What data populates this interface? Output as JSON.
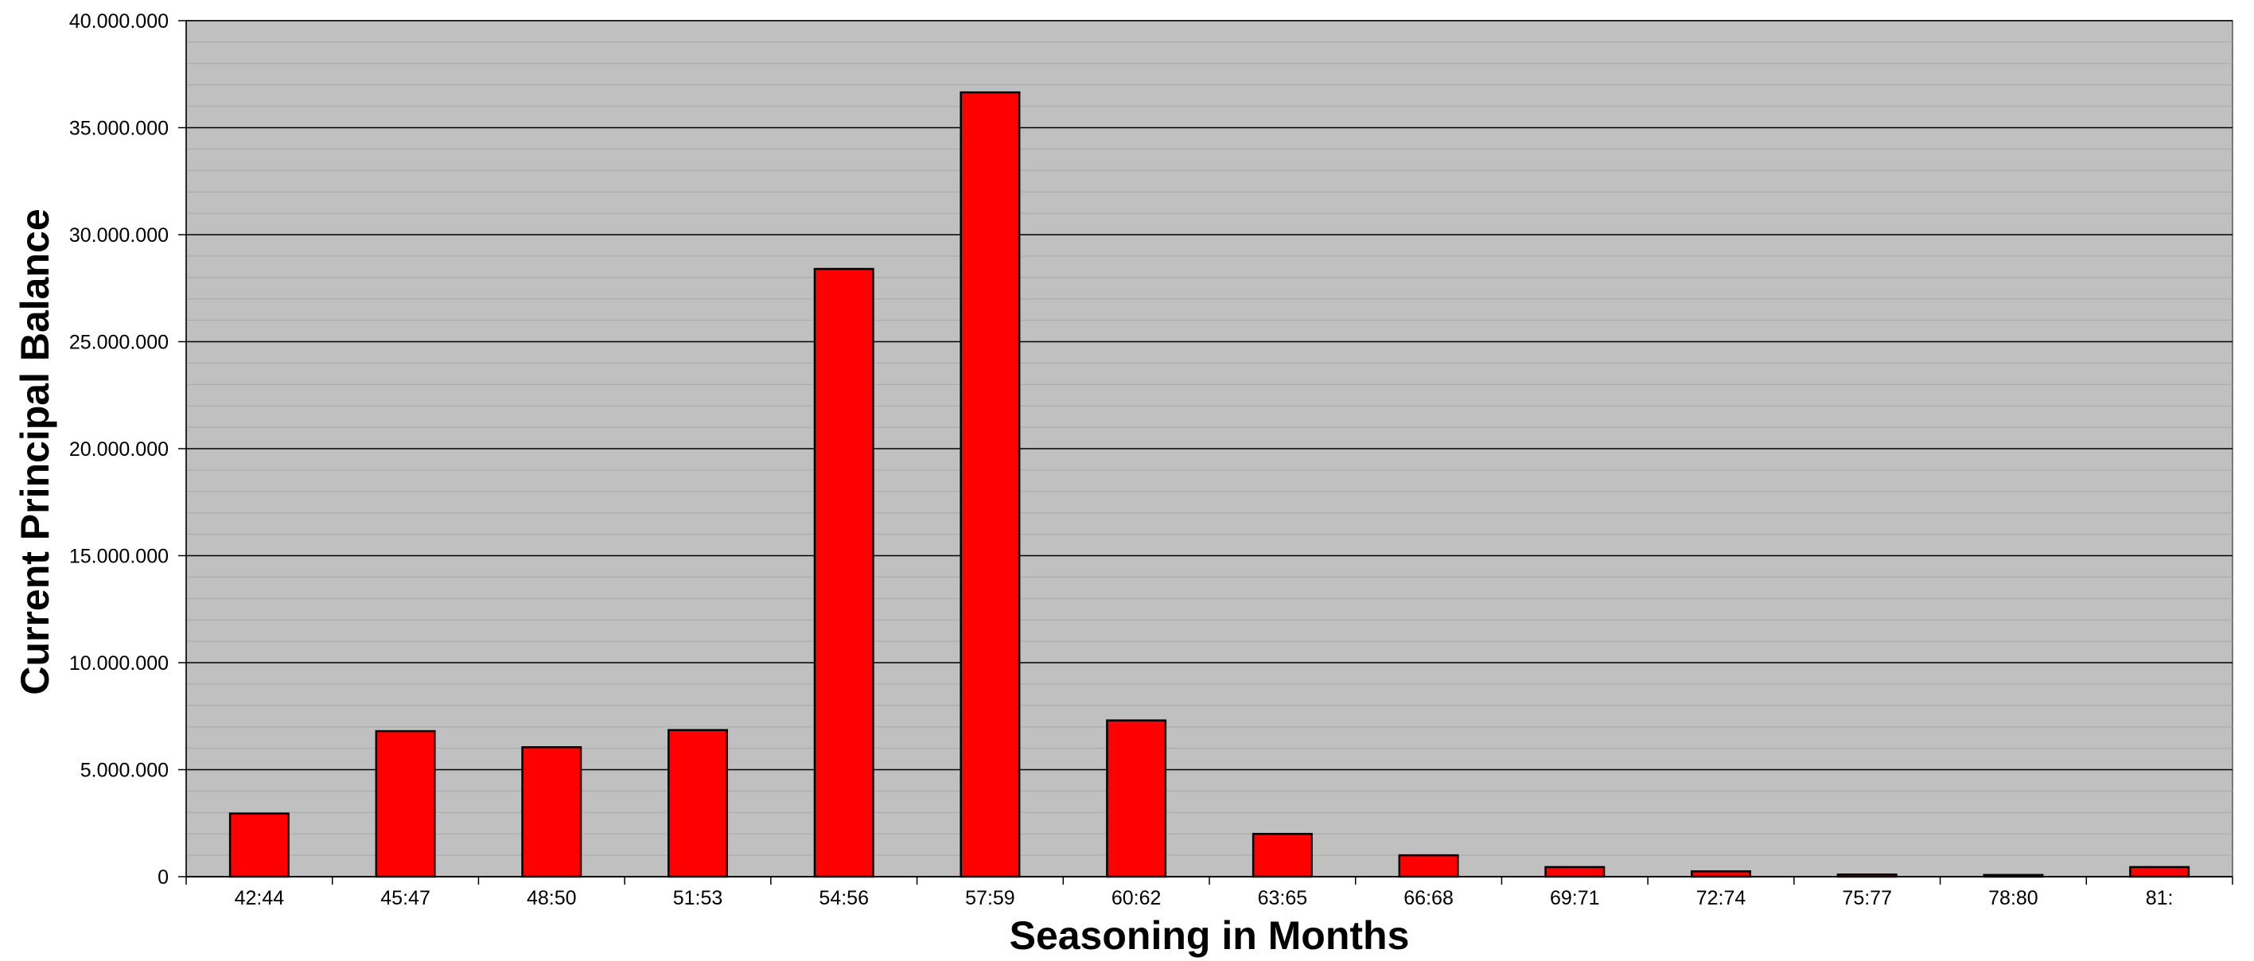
{
  "chart_data": {
    "type": "bar",
    "title": "",
    "xlabel": "Seasoning in Months",
    "ylabel": "Current Principal Balance",
    "categories": [
      "42:44",
      "45:47",
      "48:50",
      "51:53",
      "54:56",
      "57:59",
      "60:62",
      "63:65",
      "66:68",
      "69:71",
      "72:74",
      "75:77",
      "78:80",
      "81:"
    ],
    "values": [
      2950000,
      6800000,
      6050000,
      6850000,
      28400000,
      36650000,
      7300000,
      2000000,
      1000000,
      450000,
      250000,
      100000,
      80000,
      450000
    ],
    "ylim": [
      0,
      40000000
    ],
    "yticks": [
      0,
      5000000,
      10000000,
      15000000,
      20000000,
      25000000,
      30000000,
      35000000,
      40000000
    ],
    "ytick_labels": [
      "0",
      "5.000.000",
      "10.000.000",
      "15.000.000",
      "20.000.000",
      "25.000.000",
      "30.000.000",
      "35.000.000",
      "40.000.000"
    ],
    "grid": true,
    "legend": "none",
    "colors": {
      "bar_fill": "#ff0000",
      "bar_stroke": "#000000",
      "plot_background": "#c0c0c0",
      "major_gridline": "#000000",
      "minor_gridline": "#a8a8a8"
    }
  }
}
